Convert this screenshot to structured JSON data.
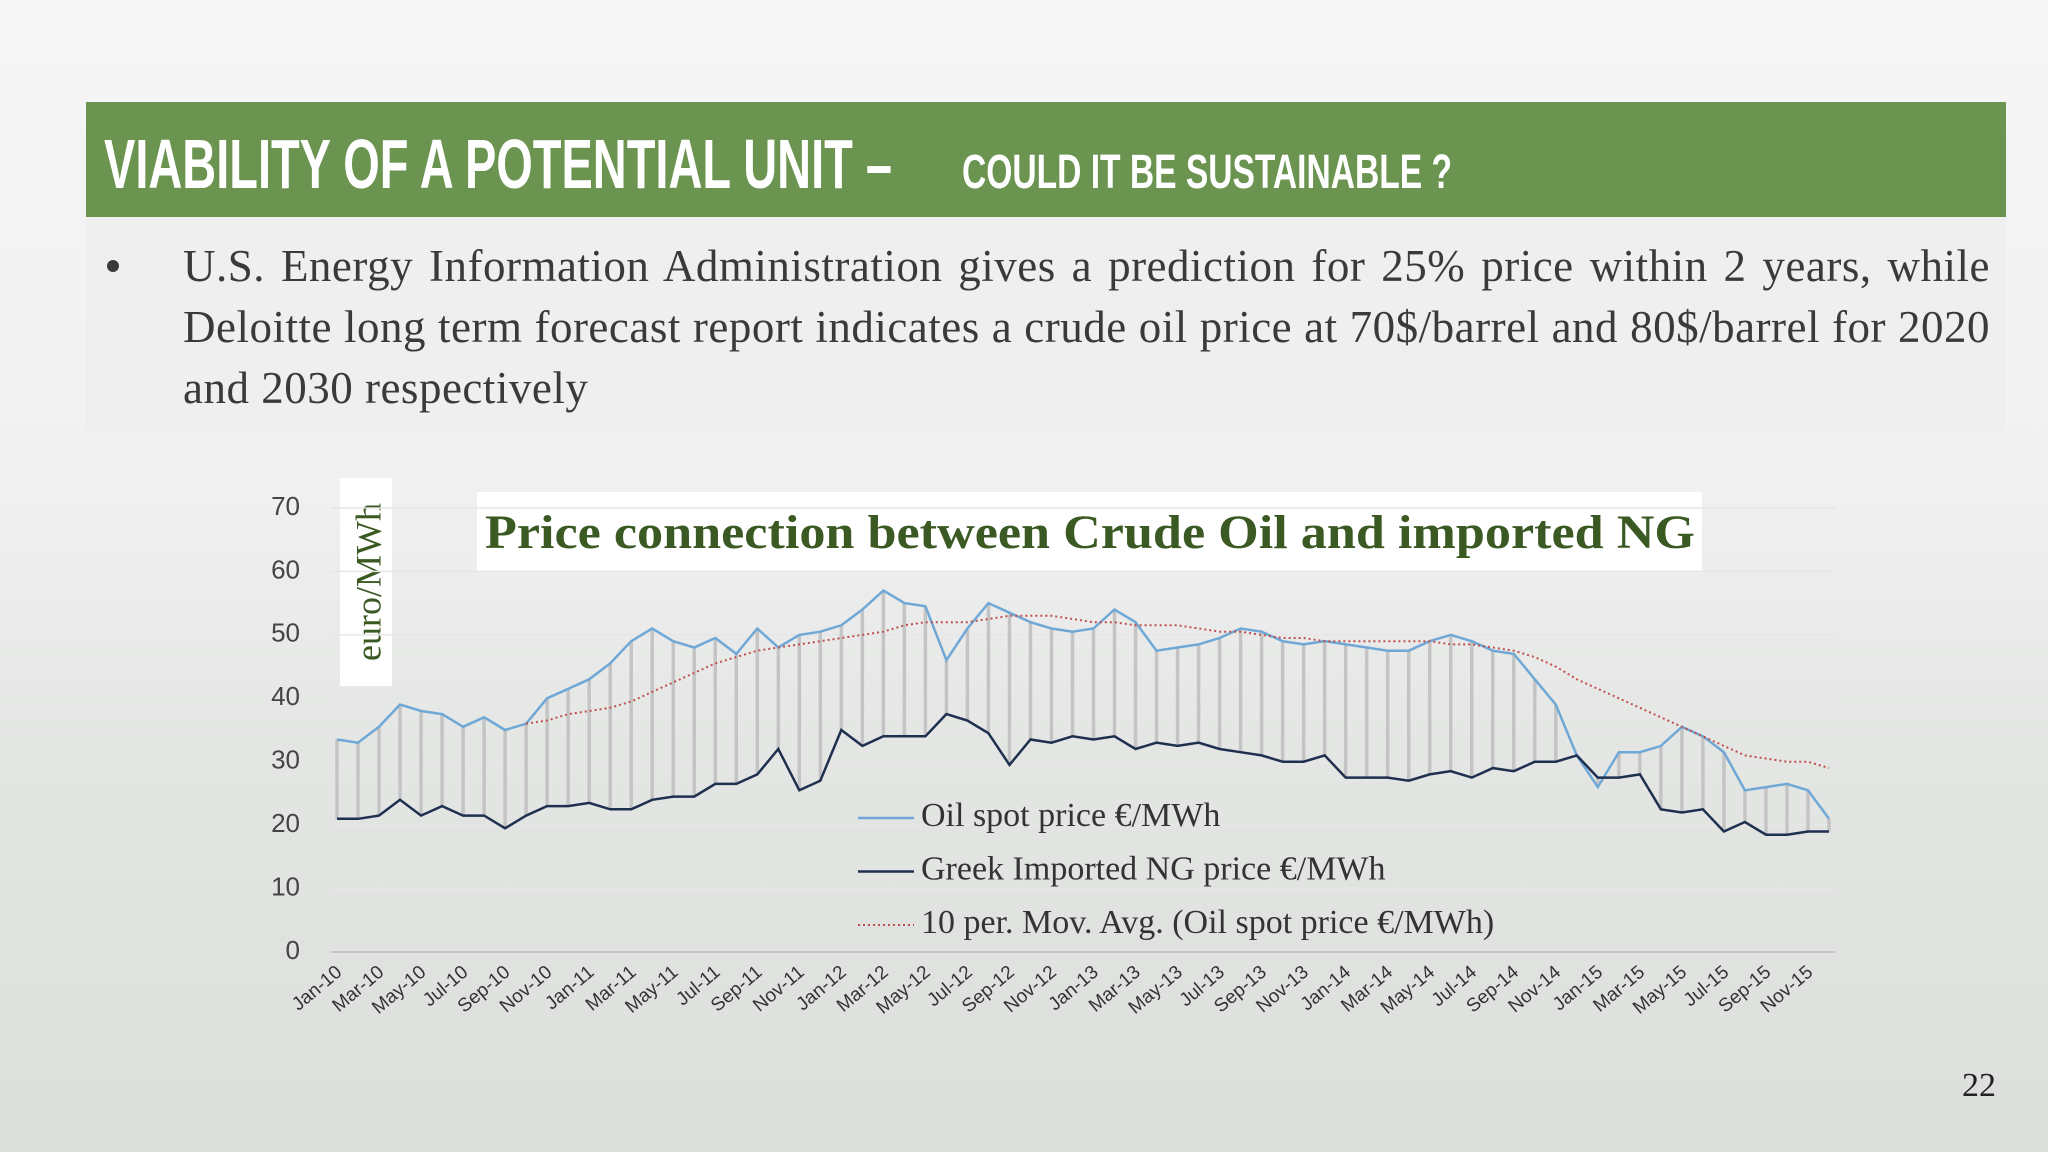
{
  "header": {
    "title": "VIABILITY OF A POTENTIAL UNIT –",
    "subtitle": "COULD IT BE SUSTAINABLE ?"
  },
  "bullet": "U.S. Energy Information Administration gives a prediction for 25% price within 2 years, while Deloitte long term forecast report indicates a crude oil price at 70$/barrel and 80$/barrel for 2020 and 2030 respectively",
  "page_number": "22",
  "chart_data": {
    "type": "line",
    "title": "Price connection between Crude Oil and imported NG",
    "y_label": "euro/MWh",
    "categories": [
      "Jan-10",
      null,
      "Mar-10",
      null,
      "May-10",
      null,
      "Jul-10",
      null,
      "Sep-10",
      null,
      "Nov-10",
      null,
      "Jan-11",
      null,
      "Mar-11",
      null,
      "May-11",
      null,
      "Jul-11",
      null,
      "Sep-11",
      null,
      "Nov-11",
      null,
      "Jan-12",
      null,
      "Mar-12",
      null,
      "May-12",
      null,
      "Jul-12",
      null,
      "Sep-12",
      null,
      "Nov-12",
      null,
      "Jan-13",
      null,
      "Mar-13",
      null,
      "May-13",
      null,
      "Jul-13",
      null,
      "Sep-13",
      null,
      "Nov-13",
      null,
      "Jan-14",
      null,
      "Mar-14",
      null,
      "May-14",
      null,
      "Jul-14",
      null,
      "Sep-14",
      null,
      "Nov-14",
      null,
      "Jan-15",
      null,
      "Mar-15",
      null,
      "May-15",
      null,
      "Jul-15",
      null,
      "Sep-15",
      null,
      "Nov-15",
      null
    ],
    "series": [
      {
        "name": "Oil spot price €/MWh",
        "color": "#6fa8d6",
        "style": "solid",
        "values": [
          33.5,
          33,
          35.5,
          39,
          38,
          37.5,
          35.5,
          37,
          35,
          36,
          40,
          41.5,
          43,
          45.5,
          49,
          51,
          49,
          48,
          49.5,
          47,
          51,
          48,
          50,
          50.5,
          51.5,
          54,
          57,
          55,
          54.5,
          46,
          51,
          55,
          53.5,
          52,
          51,
          50.5,
          51,
          54,
          52,
          47.5,
          48,
          48.5,
          49.5,
          51,
          50.5,
          49,
          48.5,
          49,
          48.5,
          48,
          47.5,
          47.5,
          49,
          50,
          49,
          47.5,
          47,
          43,
          39,
          31,
          26,
          31.5,
          31.5,
          32.5,
          35.5,
          34,
          31.5,
          25.5,
          26,
          26.5,
          25.5,
          21
        ]
      },
      {
        "name": "Greek Imported NG price €/MWh",
        "color": "#1f2f4f",
        "style": "solid",
        "values": [
          21,
          21,
          21.5,
          24,
          21.5,
          23,
          21.5,
          21.5,
          19.5,
          21.5,
          23,
          23,
          23.5,
          22.5,
          22.5,
          24,
          24.5,
          24.5,
          26.5,
          26.5,
          28,
          32,
          25.5,
          27,
          35,
          32.5,
          34,
          34,
          34,
          37.5,
          36.5,
          34.5,
          29.5,
          33.5,
          33,
          34,
          33.5,
          34,
          32,
          33,
          32.5,
          33,
          32,
          31.5,
          31,
          30,
          30,
          31,
          27.5,
          27.5,
          27.5,
          27,
          28,
          28.5,
          27.5,
          29,
          28.5,
          30,
          30,
          31,
          27.5,
          27.5,
          28,
          22.5,
          22,
          22.5,
          19,
          20.5,
          18.5,
          18.5,
          19,
          19
        ]
      },
      {
        "name": "10 per. Mov. Avg. (Oil spot price €/MWh)",
        "color": "#c0504d",
        "style": "dotted",
        "values": [
          null,
          null,
          null,
          null,
          null,
          null,
          null,
          null,
          null,
          36,
          36.5,
          37.5,
          38,
          38.5,
          39.5,
          41,
          42.5,
          44,
          45.5,
          46.5,
          47.5,
          48,
          48.5,
          49,
          49.5,
          50,
          50.5,
          51.5,
          52,
          52,
          52,
          52.5,
          53,
          53,
          53,
          52.5,
          52,
          52,
          51.5,
          51.5,
          51.5,
          51,
          50.5,
          50.5,
          50,
          49.5,
          49.5,
          49,
          49,
          49,
          49,
          49,
          49,
          48.5,
          48.5,
          48,
          47.5,
          46.5,
          45,
          43,
          41.5,
          40,
          38.5,
          37,
          35.5,
          34,
          32.5,
          31,
          30.5,
          30,
          30,
          29
        ]
      }
    ],
    "high_low_lines": true,
    "drop_line_color": "#c4c4c4",
    "ylim": [
      0,
      70
    ],
    "yticks": [
      0,
      10,
      20,
      30,
      40,
      50,
      60,
      70
    ],
    "grid": true
  }
}
